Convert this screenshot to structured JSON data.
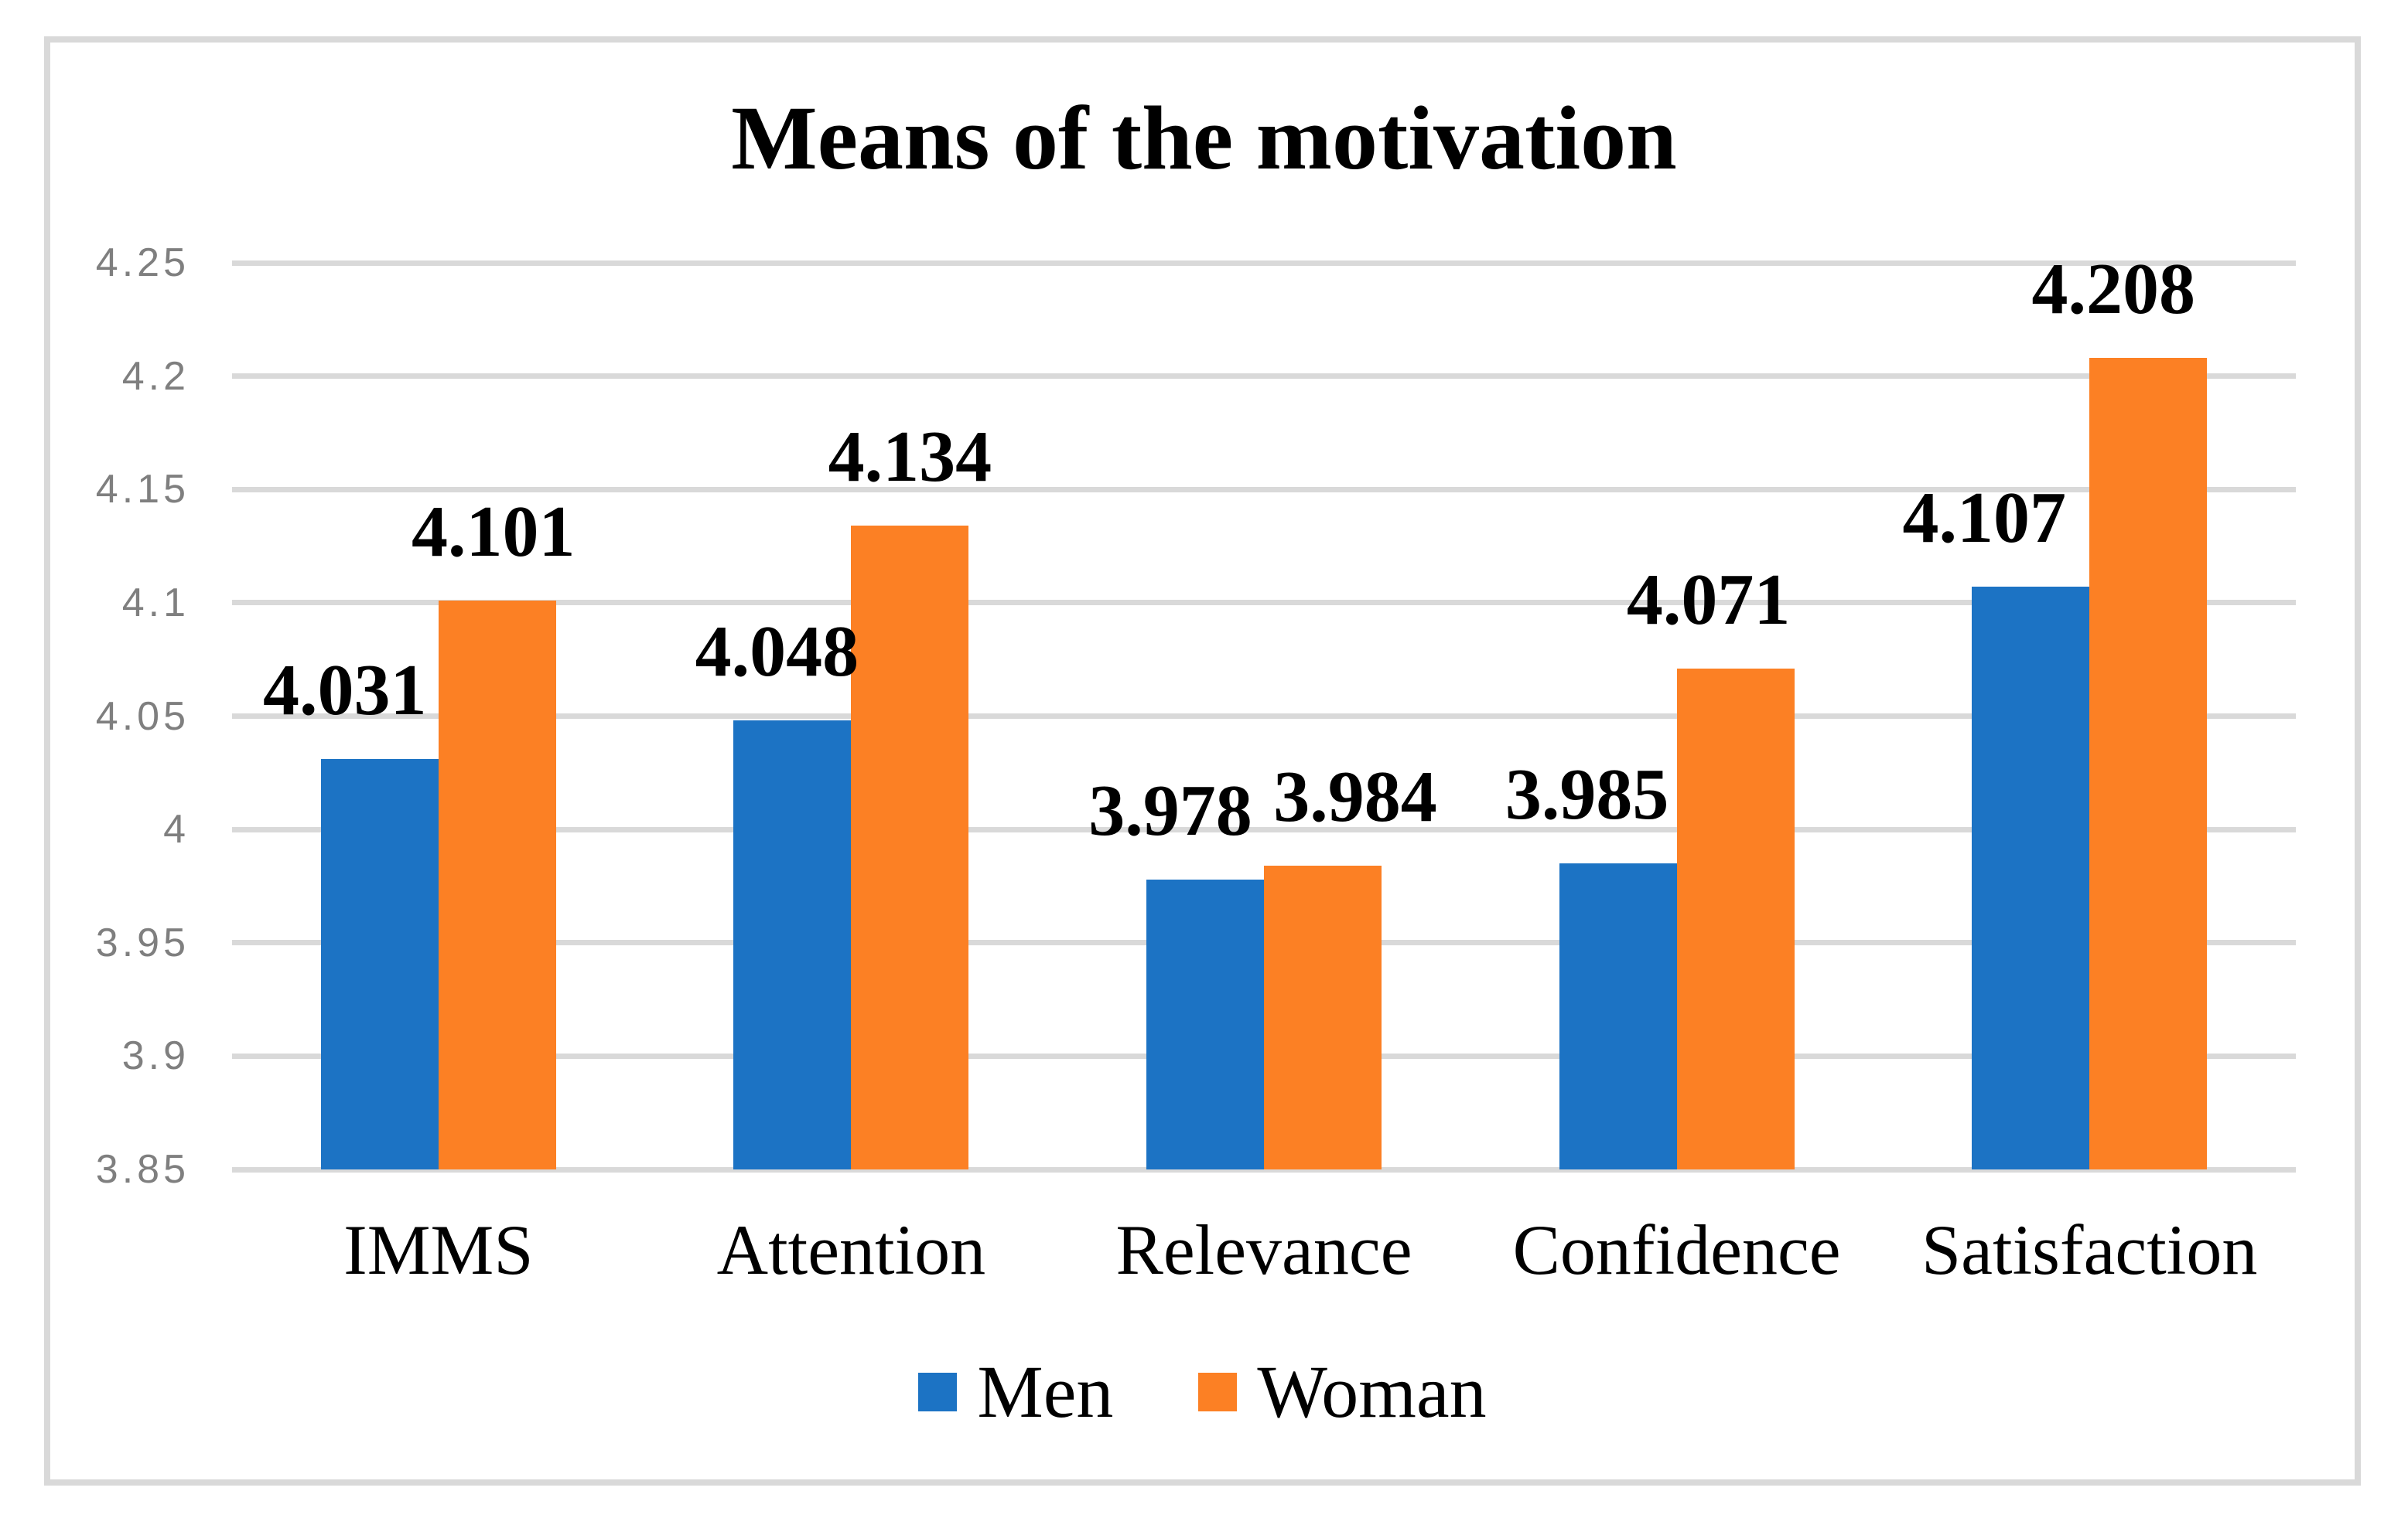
{
  "figure": {
    "title": "Means of the motivation"
  },
  "chart_data": {
    "type": "bar",
    "title": "Means of the motivation",
    "categories": [
      "IMMS",
      "Attention",
      "Relevance",
      "Confidence",
      "Satisfaction"
    ],
    "series": [
      {
        "name": "Men",
        "color": "#1C73C4",
        "values": [
          4.031,
          4.048,
          3.978,
          3.985,
          4.107
        ],
        "labels": [
          "4.031",
          "4.048",
          "3.978",
          "3.985",
          "4.107"
        ]
      },
      {
        "name": "Woman",
        "color": "#FC8024",
        "values": [
          4.101,
          4.134,
          3.984,
          4.071,
          4.208
        ],
        "labels": [
          "4.101",
          "4.134",
          "3.984",
          "4.071",
          "4.208"
        ]
      }
    ],
    "ylim": [
      3.85,
      4.25
    ],
    "ytick_step": 0.05,
    "ytick_labels": [
      "3.85",
      "3.9",
      "3.95",
      "4",
      "4.05",
      "4.1",
      "4.15",
      "4.2",
      "4.25"
    ],
    "grid": true,
    "legend_position": "bottom",
    "colors": {
      "grid": "#D9D9D9",
      "frame_border": "#D9D9D9",
      "axis_tick_text": "#7F7F7F",
      "data_label_text": "#000000",
      "background": "#FFFFFF"
    }
  }
}
